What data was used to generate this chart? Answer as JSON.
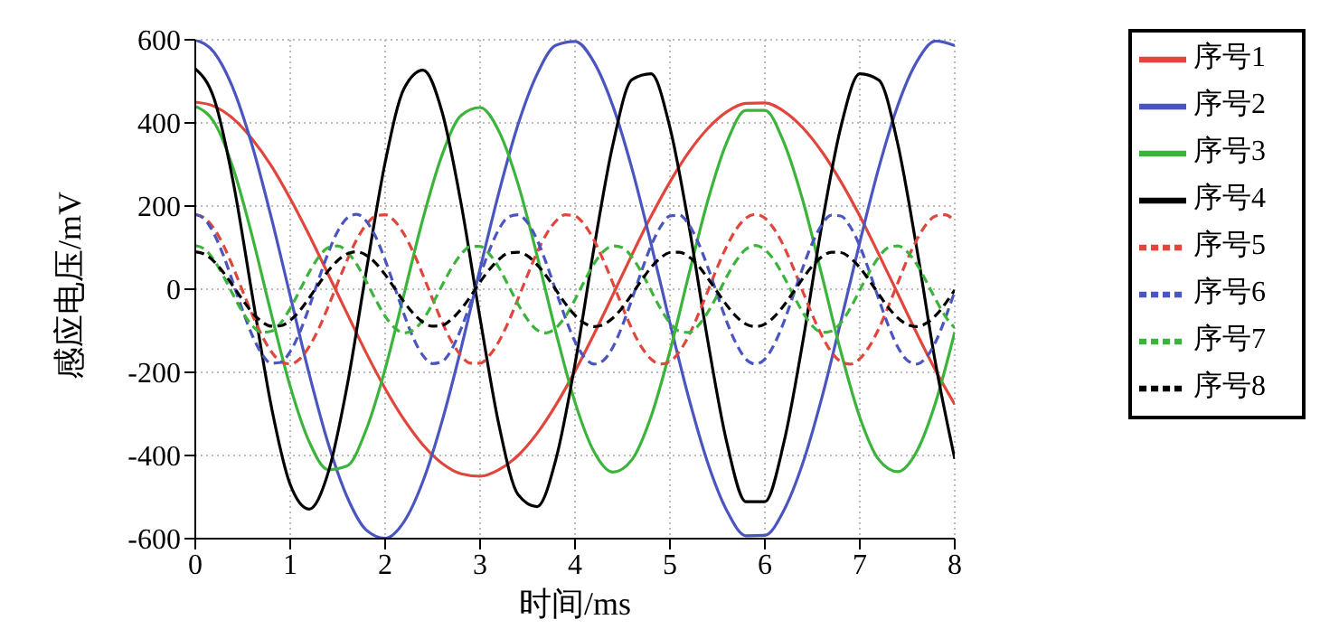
{
  "chart_data": {
    "type": "line",
    "xlabel": "时间/ms",
    "ylabel": "感应电压/mV",
    "xlim": [
      0,
      8
    ],
    "ylim": [
      -600,
      600
    ],
    "xticks": [
      0,
      1,
      2,
      3,
      4,
      5,
      6,
      7,
      8
    ],
    "yticks": [
      -600,
      -400,
      -200,
      0,
      200,
      400,
      600
    ],
    "grid": true,
    "legend": "top right",
    "series": [
      {
        "name": "序号1",
        "color": "#e0463c",
        "line_style": "solid",
        "x": [
          0,
          0.2,
          0.4,
          0.6,
          0.8,
          1,
          1.2,
          1.4,
          1.6,
          1.8,
          2,
          2.2,
          2.4,
          2.6,
          2.8,
          3,
          3.2,
          3.4,
          3.6,
          3.8,
          4,
          4.2,
          4.4,
          4.6,
          4.8,
          5,
          5.2,
          5.4,
          5.6,
          5.8,
          6,
          6.2,
          6.4,
          6.6,
          6.8,
          7,
          7.2,
          7.4,
          7.6,
          7.8,
          8
        ],
        "values": [
          450,
          440,
          410,
          361,
          297,
          218,
          130,
          36,
          -59,
          -153,
          -239,
          -314,
          -375,
          -419,
          -444,
          -450,
          -434,
          -400,
          -347,
          -278,
          -197,
          -108,
          -13,
          83,
          175,
          258,
          330,
          387,
          427,
          447,
          448,
          428,
          388,
          331,
          259,
          176,
          84,
          -11,
          -106,
          -196,
          -277
        ]
      },
      {
        "name": "序号2",
        "color": "#4a55c0",
        "line_style": "solid",
        "x": [
          0,
          0.2,
          0.4,
          0.6,
          0.8,
          1,
          1.2,
          1.4,
          1.6,
          1.8,
          2,
          2.2,
          2.4,
          2.6,
          2.8,
          3,
          3.2,
          3.4,
          3.6,
          3.8,
          4,
          4.2,
          4.4,
          4.6,
          4.8,
          5,
          5.2,
          5.4,
          5.6,
          5.8,
          6,
          6.2,
          6.4,
          6.6,
          6.8,
          7,
          7.2,
          7.4,
          7.6,
          7.8,
          8
        ],
        "values": [
          600,
          569,
          482,
          345,
          173,
          -16,
          -204,
          -371,
          -500,
          -579,
          -599,
          -559,
          -461,
          -317,
          -142,
          49,
          234,
          396,
          517,
          587,
          596,
          546,
          440,
          290,
          110,
          -81,
          -263,
          -419,
          -533,
          -593,
          -592,
          -532,
          -418,
          -261,
          -78,
          113,
          292,
          442,
          547,
          597,
          586
        ]
      },
      {
        "name": "序号3",
        "color": "#3cb43c",
        "line_style": "solid",
        "x": [
          0,
          0.2,
          0.4,
          0.6,
          0.8,
          1,
          1.2,
          1.4,
          1.6,
          1.8,
          2,
          2.2,
          2.4,
          2.6,
          2.8,
          3,
          3.2,
          3.4,
          3.6,
          3.8,
          4,
          4.2,
          4.4,
          4.6,
          4.8,
          5,
          5.2,
          5.4,
          5.6,
          5.8,
          6,
          6.2,
          6.4,
          6.6,
          6.8,
          7,
          7.2,
          7.4,
          7.6,
          7.8,
          8
        ],
        "values": [
          440,
          401,
          290,
          127,
          -59,
          -234,
          -367,
          -434,
          -425,
          -338,
          -192,
          -11,
          171,
          323,
          418,
          437,
          379,
          253,
          81,
          -105,
          -272,
          -391,
          -440,
          -410,
          -307,
          -149,
          36,
          214,
          354,
          430,
          430,
          353,
          213,
          34,
          -150,
          -308,
          -410,
          -439,
          -390,
          -271,
          -103
        ]
      },
      {
        "name": "序号4",
        "color": "#000000",
        "line_style": "solid",
        "x": [
          0,
          0.2,
          0.4,
          0.6,
          0.8,
          1,
          1.2,
          1.4,
          1.6,
          1.8,
          2,
          2.2,
          2.4,
          2.6,
          2.8,
          3,
          3.2,
          3.4,
          3.6,
          3.8,
          4,
          4.2,
          4.4,
          4.6,
          4.8,
          5,
          5.2,
          5.4,
          5.6,
          5.8,
          6,
          6.2,
          6.4,
          6.6,
          6.8,
          7,
          7.2,
          7.4,
          7.6,
          7.8,
          8
        ],
        "values": [
          530,
          457,
          257,
          -14,
          -281,
          -470,
          -529,
          -441,
          -232,
          42,
          305,
          483,
          527,
          426,
          206,
          -70,
          -328,
          -494,
          -523,
          -408,
          -180,
          99,
          349,
          504,
          518,
          389,
          153,
          -126,
          -370,
          -511,
          -511,
          -369,
          -126,
          154,
          390,
          518,
          503,
          349,
          98,
          -181,
          -408
        ]
      },
      {
        "name": "序号5",
        "color": "#e0463c",
        "line_style": "dashed",
        "x": [
          0,
          0.1,
          0.2,
          0.3,
          0.4,
          0.5,
          0.6,
          0.7,
          0.8,
          0.9,
          1,
          1.1,
          1.2,
          1.3,
          1.4,
          1.5,
          1.6,
          1.7,
          1.8,
          1.9,
          2,
          2.1,
          2.2,
          2.3,
          2.4,
          2.5,
          2.6,
          2.7,
          2.8,
          2.9,
          3,
          3.1,
          3.2,
          3.3,
          3.4,
          3.5,
          3.6,
          3.7,
          3.8,
          3.9,
          4,
          4.1,
          4.2,
          4.3,
          4.4,
          4.5,
          4.6,
          4.7,
          4.8,
          4.9,
          5,
          5.1,
          5.2,
          5.3,
          5.4,
          5.5,
          5.6,
          5.7,
          5.8,
          5.9,
          6,
          6.1,
          6.2,
          6.3,
          6.4,
          6.5,
          6.6,
          6.7,
          6.8,
          6.9,
          7,
          7.1,
          7.2,
          7.3,
          7.4,
          7.5,
          7.6,
          7.7,
          7.8,
          7.9,
          8
        ],
        "values": [
          180,
          171,
          145,
          104,
          52,
          -5,
          -61,
          -111,
          -150,
          -174,
          -180,
          -168,
          -138,
          -95,
          -42,
          15,
          70,
          119,
          155,
          176,
          179,
          164,
          132,
          87,
          33,
          -24,
          -79,
          -126,
          -160,
          -178,
          -178,
          -159,
          -125,
          -78,
          -23,
          34,
          88,
          133,
          164,
          179,
          176,
          155,
          118,
          69,
          14,
          -43,
          -96,
          -139,
          -168,
          -180,
          -174,
          -150,
          -111,
          -60,
          -4,
          53,
          104,
          145,
          171,
          180,
          171,
          144,
          103,
          51,
          -6,
          -62,
          -112,
          -151,
          -174,
          -180,
          -167,
          -138,
          -95,
          -42,
          15,
          71,
          119,
          156,
          176,
          179,
          163
        ]
      },
      {
        "name": "序号6",
        "color": "#4a55c0",
        "line_style": "dashed",
        "x": [
          0,
          0.1,
          0.2,
          0.3,
          0.4,
          0.5,
          0.6,
          0.7,
          0.8,
          0.9,
          1,
          1.1,
          1.2,
          1.3,
          1.4,
          1.5,
          1.6,
          1.7,
          1.8,
          1.9,
          2,
          2.1,
          2.2,
          2.3,
          2.4,
          2.5,
          2.6,
          2.7,
          2.8,
          2.9,
          3,
          3.1,
          3.2,
          3.3,
          3.4,
          3.5,
          3.6,
          3.7,
          3.8,
          3.9,
          4,
          4.1,
          4.2,
          4.3,
          4.4,
          4.5,
          4.6,
          4.7,
          4.8,
          4.9,
          5,
          5.1,
          5.2,
          5.3,
          5.4,
          5.5,
          5.6,
          5.7,
          5.8,
          5.9,
          6,
          6.1,
          6.2,
          6.3,
          6.4,
          6.5,
          6.6,
          6.7,
          6.8,
          6.9,
          7,
          7.1,
          7.2,
          7.3,
          7.4,
          7.5,
          7.6,
          7.7,
          7.8,
          7.9,
          8
        ],
        "values": [
          180,
          168,
          132,
          79,
          14,
          -52,
          -111,
          -155,
          -178,
          -176,
          -150,
          -104,
          -43,
          24,
          87,
          139,
          171,
          180,
          164,
          126,
          70,
          5,
          -61,
          -119,
          -160,
          -179,
          -174,
          -145,
          -95,
          -33,
          33,
          95,
          145,
          174,
          179,
          160,
          119,
          61,
          -5,
          -70,
          -126,
          -164,
          -180,
          -171,
          -139,
          -87,
          -24,
          43,
          104,
          150,
          176,
          178,
          155,
          111,
          52,
          -14,
          -79,
          -132,
          -168,
          -180,
          -168,
          -132,
          -79,
          -14,
          52,
          111,
          155,
          178,
          176,
          150,
          104,
          43,
          -24,
          -87,
          -139,
          -171,
          -180,
          -164,
          -126,
          -70,
          -5
        ]
      },
      {
        "name": "序号7",
        "color": "#3cb43c",
        "line_style": "dashed",
        "x": [
          0,
          0.1,
          0.2,
          0.3,
          0.4,
          0.5,
          0.6,
          0.7,
          0.8,
          0.9,
          1,
          1.1,
          1.2,
          1.3,
          1.4,
          1.5,
          1.6,
          1.7,
          1.8,
          1.9,
          2,
          2.1,
          2.2,
          2.3,
          2.4,
          2.5,
          2.6,
          2.7,
          2.8,
          2.9,
          3,
          3.1,
          3.2,
          3.3,
          3.4,
          3.5,
          3.6,
          3.7,
          3.8,
          3.9,
          4,
          4.1,
          4.2,
          4.3,
          4.4,
          4.5,
          4.6,
          4.7,
          4.8,
          4.9,
          5,
          5.1,
          5.2,
          5.3,
          5.4,
          5.5,
          5.6,
          5.7,
          5.8,
          5.9,
          6,
          6.1,
          6.2,
          6.3,
          6.4,
          6.5,
          6.6,
          6.7,
          6.8,
          6.9,
          7,
          7.1,
          7.2,
          7.3,
          7.4,
          7.5,
          7.6,
          7.7,
          7.8,
          7.9,
          8
        ],
        "values": [
          105,
          96,
          69,
          30,
          -14,
          -56,
          -88,
          -104,
          -101,
          -81,
          -46,
          -3,
          41,
          77,
          100,
          104,
          90,
          60,
          19,
          -25,
          -65,
          -93,
          -105,
          -98,
          -73,
          -35,
          9,
          51,
          84,
          103,
          103,
          84,
          51,
          8,
          -36,
          -73,
          -98,
          -105,
          -93,
          -65,
          -25,
          20,
          61,
          91,
          104,
          100,
          77,
          41,
          -3,
          -46,
          -81,
          -101,
          -104,
          -87,
          -55,
          -14,
          31,
          69,
          96,
          105,
          95,
          69,
          30,
          -14,
          -56,
          -88,
          -104,
          -101,
          -81,
          -46,
          -2,
          41,
          77,
          100,
          104,
          90,
          60,
          19,
          -25,
          -65,
          -93
        ]
      },
      {
        "name": "序号8",
        "color": "#000000",
        "line_style": "dashed",
        "x": [
          0,
          0.1,
          0.2,
          0.3,
          0.4,
          0.5,
          0.6,
          0.7,
          0.8,
          0.9,
          1,
          1.1,
          1.2,
          1.3,
          1.4,
          1.5,
          1.6,
          1.7,
          1.8,
          1.9,
          2,
          2.1,
          2.2,
          2.3,
          2.4,
          2.5,
          2.6,
          2.7,
          2.8,
          2.9,
          3,
          3.1,
          3.2,
          3.3,
          3.4,
          3.5,
          3.6,
          3.7,
          3.8,
          3.9,
          4,
          4.1,
          4.2,
          4.3,
          4.4,
          4.5,
          4.6,
          4.7,
          4.8,
          4.9,
          5,
          5.1,
          5.2,
          5.3,
          5.4,
          5.5,
          5.6,
          5.7,
          5.8,
          5.9,
          6,
          6.1,
          6.2,
          6.3,
          6.4,
          6.5,
          6.6,
          6.7,
          6.8,
          6.9,
          7,
          7.1,
          7.2,
          7.3,
          7.4,
          7.5,
          7.6,
          7.7,
          7.8,
          7.9,
          8
        ],
        "values": [
          90,
          84,
          66,
          39,
          7,
          -26,
          -56,
          -78,
          -89,
          -88,
          -75,
          -52,
          -21,
          12,
          44,
          69,
          85,
          90,
          82,
          63,
          35,
          2,
          -31,
          -59,
          -80,
          -89,
          -87,
          -72,
          -48,
          -17,
          17,
          48,
          72,
          87,
          89,
          80,
          59,
          31,
          -2,
          -35,
          -63,
          -82,
          -90,
          -85,
          -69,
          -44,
          -12,
          21,
          52,
          75,
          88,
          89,
          78,
          56,
          26,
          -7,
          -39,
          -66,
          -84,
          -90,
          -84,
          -66,
          -39,
          -7,
          26,
          56,
          78,
          89,
          88,
          75,
          52,
          21,
          -12,
          -44,
          -69,
          -85,
          -90,
          -82,
          -63,
          -35,
          -2
        ]
      }
    ]
  }
}
